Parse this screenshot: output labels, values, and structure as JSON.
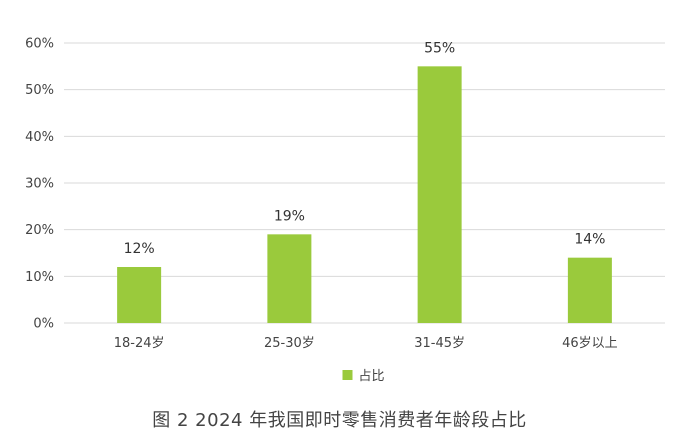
{
  "chart_data": {
    "type": "bar",
    "categories": [
      "18-24岁",
      "25-30岁",
      "31-45岁",
      "46岁以上"
    ],
    "series": [
      {
        "name": "占比",
        "values": [
          12,
          19,
          55,
          14
        ],
        "data_labels": [
          "12%",
          "19%",
          "55%",
          "14%"
        ]
      }
    ],
    "ylim": [
      0,
      60
    ],
    "yticks": [
      0,
      10,
      20,
      30,
      40,
      50,
      60
    ],
    "ytick_labels": [
      "0%",
      "10%",
      "20%",
      "30%",
      "40%",
      "50%",
      "60%"
    ],
    "grid": true,
    "legend": "bottom",
    "bar_color": "#9ACA3C",
    "grid_color": "#D9D9D9"
  },
  "caption": "图 2  2024 年我国即时零售消费者年龄段占比"
}
